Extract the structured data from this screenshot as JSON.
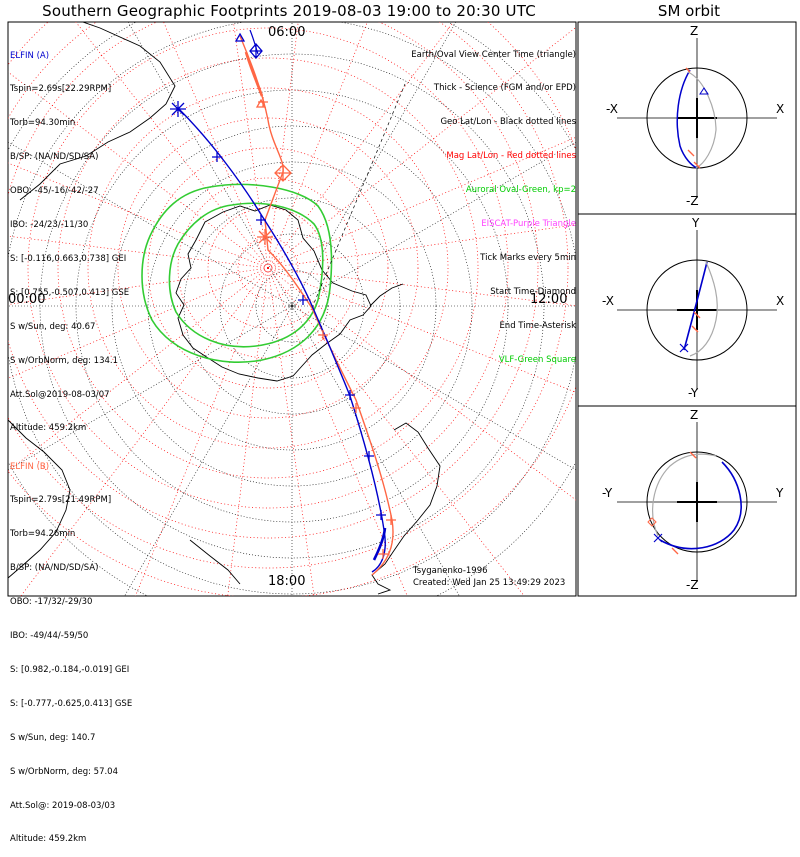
{
  "title": "Southern Geographic Footprints 2019-08-03 19:00 to 20:30 UTC",
  "sm_title": "SM orbit",
  "elfin_a": {
    "header": "ELFIN (A)",
    "lines": [
      "Tspin=2.69s[22.29RPM]",
      "Torb=94.30min",
      "B/SP: (NA/ND/SD/SA)",
      "OBO: -45/-16/-42/-27",
      "IBO: -24/23/-11/30",
      "S: [-0.116,0.663,0.738] GEI",
      "S: [0.755,-0.507,0.413] GSE",
      "S w/Sun, deg: 40.67",
      "S w/OrbNorm, deg: 134.1",
      "Att.Sol@2019-08-03/07",
      "Altitude: 459.2km"
    ]
  },
  "elfin_b": {
    "header": "ELFIN (B)",
    "lines": [
      "Tspin=2.79s[21.49RPM]",
      "Torb=94.26min",
      "B/SP: (NA/ND/SD/SA)",
      "OBO: -17/32/-29/30",
      "IBO: -49/44/-59/50",
      "S: [0.982,-0.184,-0.019] GEI",
      "S: [-0.777,-0.625,0.413] GSE",
      "S w/Sun, deg: 140.7",
      "S w/OrbNorm, deg: 57.04",
      "Att.Sol@: 2019-08-03/03",
      "Altitude: 459.2km"
    ]
  },
  "legend": [
    {
      "text": "Earth/Oval View Center Time (triangle)",
      "color": "#000000"
    },
    {
      "text": "Thick - Science (FGM and/or EPD)",
      "color": "#000000"
    },
    {
      "text": "Geo Lat/Lon - Black dotted lines",
      "color": "#000000"
    },
    {
      "text": "Mag Lat/Lon - Red dotted lines",
      "color": "#ff0000"
    },
    {
      "text": "Auroral Oval-Green, kp=2",
      "color": "#00cc00"
    },
    {
      "text": "EISCAT-Purple Triangle",
      "color": "#ff44ff"
    },
    {
      "text": "Tick Marks every 5min",
      "color": "#000000"
    },
    {
      "text": "Start Time-Diamond",
      "color": "#000000"
    },
    {
      "text": "End Time-Asterisk",
      "color": "#000000"
    },
    {
      "text": "VLF-Green Square",
      "color": "#00cc00"
    }
  ],
  "clock_labels": {
    "top": "06:00",
    "left": "00:00",
    "right": "12:00",
    "bottom": "18:00"
  },
  "footer": {
    "model": "Tsyganenko-1996",
    "created": "Created: Wed Jan 25 13:49:29 2023"
  },
  "sm_panels": [
    {
      "top": "Z",
      "bottom": "-Z",
      "left": "-X",
      "right": "X"
    },
    {
      "top": "Y",
      "bottom": "-Y",
      "left": "-X",
      "right": "X"
    },
    {
      "top": "Z",
      "bottom": "-Z",
      "left": "-Y",
      "right": "Y"
    }
  ],
  "colors": {
    "elfin_a": "#0000cc",
    "elfin_b": "#ff6644",
    "oval": "#33cc33",
    "mag_grid": "#ff0000",
    "geo_grid": "#000000",
    "eiscat": "#ff44ff"
  }
}
